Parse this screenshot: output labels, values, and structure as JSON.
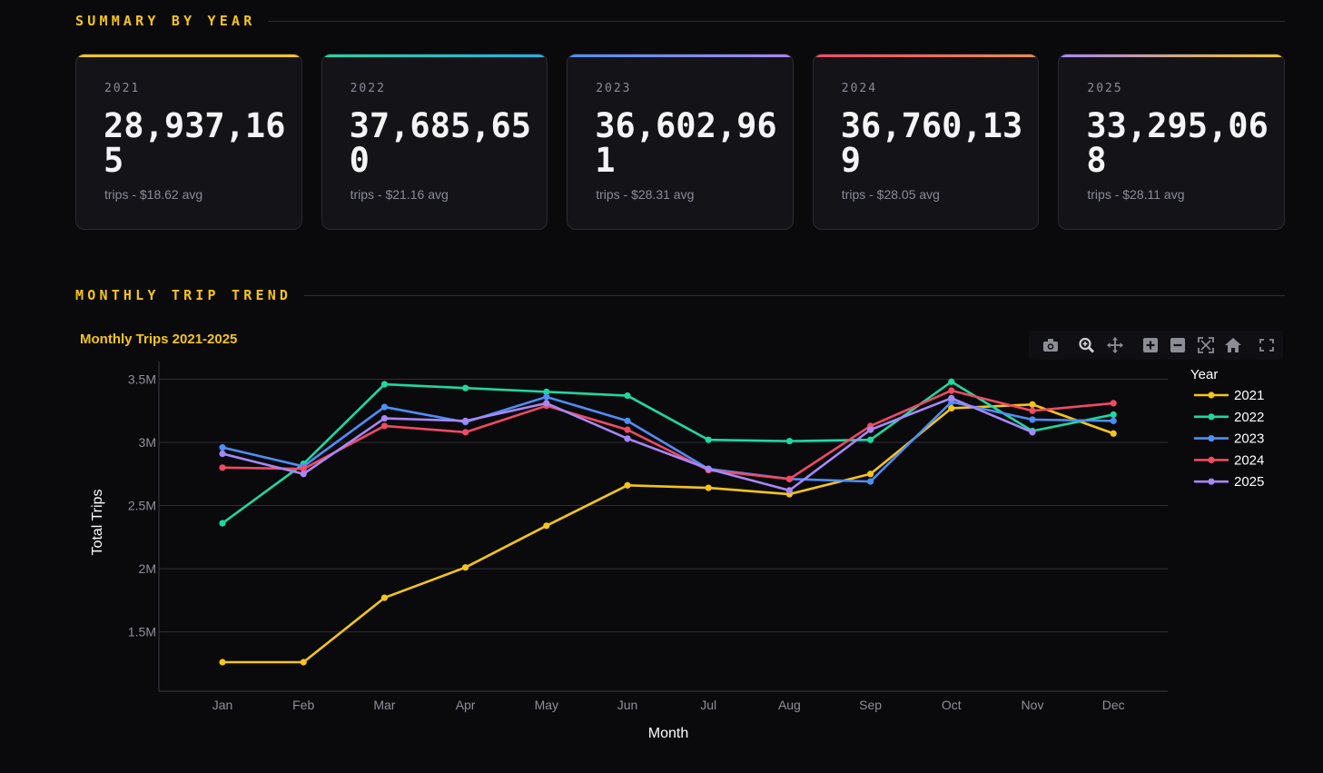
{
  "summary": {
    "heading": "SUMMARY BY YEAR",
    "cards": [
      {
        "year": "2021",
        "value": "28,937,165",
        "subtitle": "trips - $18.62 avg",
        "accent": "#f5c518",
        "accent_end": "#f5c518"
      },
      {
        "year": "2022",
        "value": "37,685,650",
        "subtitle": "trips - $21.16 avg",
        "accent": "#1fd8a0",
        "accent_end": "#1fb0e8"
      },
      {
        "year": "2023",
        "value": "36,602,961",
        "subtitle": "trips - $28.31 avg",
        "accent": "#4f8ef7",
        "accent_end": "#a887f7"
      },
      {
        "year": "2024",
        "value": "36,760,139",
        "subtitle": "trips - $28.05 avg",
        "accent": "#f04a64",
        "accent_end": "#f08a4a"
      },
      {
        "year": "2025",
        "value": "33,295,068",
        "subtitle": "trips - $28.11 avg",
        "accent": "#a887f7",
        "accent_end": "#f5c518"
      }
    ]
  },
  "trend": {
    "heading": "MONTHLY TRIP TREND"
  },
  "modebar": {
    "icons": [
      "camera-icon",
      "zoom-icon",
      "pan-icon",
      "zoom-in-icon",
      "zoom-out-icon",
      "autoscale-icon",
      "home-icon",
      "fullscreen-icon"
    ]
  },
  "chart_data": {
    "type": "line",
    "title": "Monthly Trips 2021-2025",
    "xlabel": "Month",
    "ylabel": "Total Trips",
    "categories": [
      "Jan",
      "Feb",
      "Mar",
      "Apr",
      "May",
      "Jun",
      "Jul",
      "Aug",
      "Sep",
      "Oct",
      "Nov",
      "Dec"
    ],
    "ylim": [
      1030000,
      3640000
    ],
    "yticks": [
      1500000,
      2000000,
      2500000,
      3000000,
      3500000
    ],
    "ytick_labels": [
      "1.5M",
      "2M",
      "2.5M",
      "3M",
      "3.5M"
    ],
    "grid": true,
    "legend_title": "Year",
    "legend_position": "right",
    "series": [
      {
        "name": "2021",
        "color": "#f5c518",
        "values": [
          1260000,
          1260000,
          1770000,
          2010000,
          2340000,
          2660000,
          2640000,
          2590000,
          2750000,
          3270000,
          3300000,
          3070000
        ]
      },
      {
        "name": "2022",
        "color": "#1fd8a0",
        "values": [
          2360000,
          2830000,
          3460000,
          3430000,
          3400000,
          3370000,
          3020000,
          3010000,
          3020000,
          3480000,
          3090000,
          3220000
        ]
      },
      {
        "name": "2023",
        "color": "#4f8ef7",
        "values": [
          2960000,
          2810000,
          3280000,
          3160000,
          3360000,
          3170000,
          2790000,
          2710000,
          2690000,
          3320000,
          3180000,
          3170000
        ]
      },
      {
        "name": "2024",
        "color": "#f04a64",
        "values": [
          2800000,
          2790000,
          3130000,
          3080000,
          3290000,
          3100000,
          2780000,
          2710000,
          3130000,
          3410000,
          3250000,
          3310000
        ]
      },
      {
        "name": "2025",
        "color": "#a887f7",
        "values": [
          2910000,
          2750000,
          3190000,
          3170000,
          3310000,
          3030000,
          2790000,
          2620000,
          3100000,
          3350000,
          3080000,
          null
        ]
      }
    ]
  }
}
